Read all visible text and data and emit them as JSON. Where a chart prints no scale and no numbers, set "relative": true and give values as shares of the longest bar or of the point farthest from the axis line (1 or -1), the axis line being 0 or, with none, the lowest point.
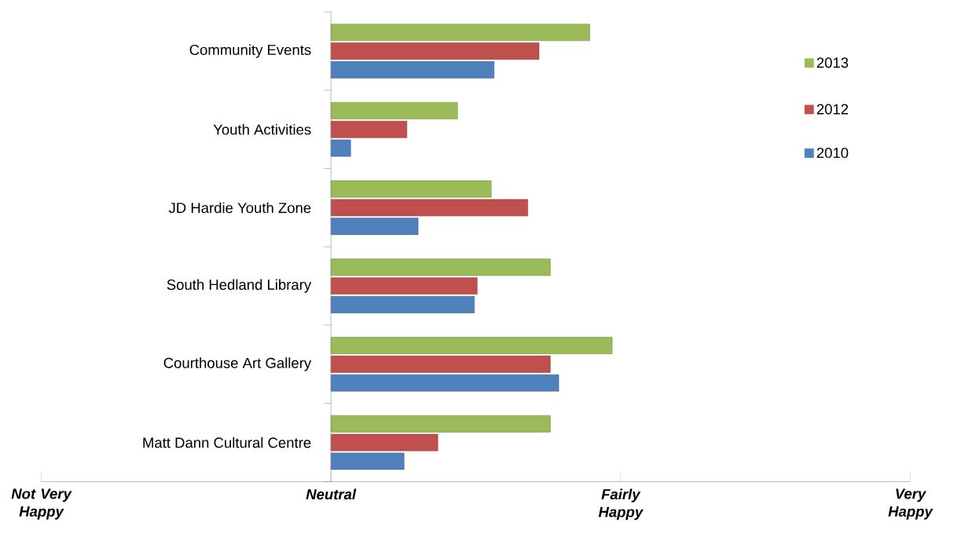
{
  "chart_data": {
    "type": "bar",
    "orientation": "horizontal",
    "relative": true,
    "categories": [
      "Community Events",
      "Youth Activities",
      "JD Hardie Youth Zone",
      "South Hedland Library",
      "Courthouse Art Gallery",
      "Matt Dann Cultural Centre"
    ],
    "series": [
      {
        "name": "2013",
        "color": "#9bbb59",
        "values": [
          0.92,
          0.45,
          0.57,
          0.78,
          1,
          0.78
        ]
      },
      {
        "name": "2012",
        "color": "#c0504d",
        "values": [
          0.74,
          0.27,
          0.7,
          0.52,
          0.78,
          0.38
        ]
      },
      {
        "name": "2010",
        "color": "#4f81bd",
        "values": [
          0.58,
          0.07,
          0.31,
          0.51,
          0.81,
          0.26
        ]
      }
    ],
    "annotations": [
      "Not Very Happy",
      "Neutral",
      "Fairly Happy",
      "Very Happy"
    ],
    "legend": "top right"
  }
}
